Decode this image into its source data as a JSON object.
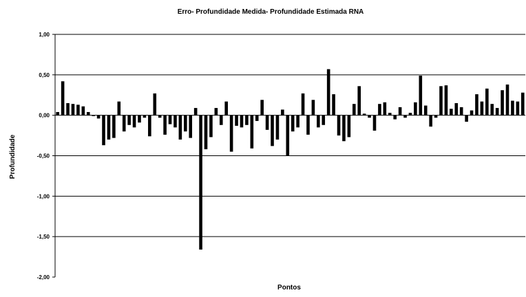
{
  "chart_data": {
    "type": "bar",
    "title": "Erro- Profundidade Medida- Profundidade Estimada RNA",
    "xlabel": "Pontos",
    "ylabel": "Profundidade",
    "ylim": [
      -2.0,
      1.0
    ],
    "yticks": [
      1.0,
      0.5,
      0.0,
      -0.5,
      -1.0,
      -1.5,
      -2.0
    ],
    "ytick_labels": [
      "1,00",
      "0,50",
      "0,00",
      "-0,50",
      "-1,00",
      "-1,50",
      "-2,00"
    ],
    "grid": true,
    "bar_color": "#000000",
    "values": [
      0.04,
      0.42,
      0.15,
      0.14,
      0.13,
      0.11,
      0.04,
      -0.01,
      -0.04,
      -0.37,
      -0.3,
      -0.28,
      0.17,
      -0.2,
      -0.12,
      -0.15,
      -0.09,
      -0.03,
      -0.26,
      0.27,
      -0.03,
      -0.24,
      -0.11,
      -0.15,
      -0.3,
      -0.2,
      -0.28,
      0.09,
      -1.66,
      -0.42,
      -0.27,
      0.09,
      -0.12,
      0.17,
      -0.45,
      -0.13,
      -0.15,
      -0.12,
      -0.41,
      -0.07,
      0.19,
      -0.18,
      -0.38,
      -0.3,
      0.07,
      -0.5,
      -0.2,
      -0.15,
      0.27,
      -0.24,
      0.19,
      -0.15,
      -0.12,
      0.57,
      0.26,
      -0.25,
      -0.32,
      -0.27,
      0.14,
      0.36,
      0.02,
      -0.03,
      -0.19,
      0.14,
      0.16,
      0.03,
      -0.05,
      0.1,
      -0.03,
      0.03,
      0.16,
      0.49,
      0.12,
      -0.14,
      -0.03,
      0.36,
      0.37,
      0.08,
      0.15,
      0.1,
      -0.08,
      0.06,
      0.26,
      0.17,
      0.33,
      0.14,
      0.09,
      0.31,
      0.38,
      0.18,
      0.17,
      0.28
    ]
  }
}
